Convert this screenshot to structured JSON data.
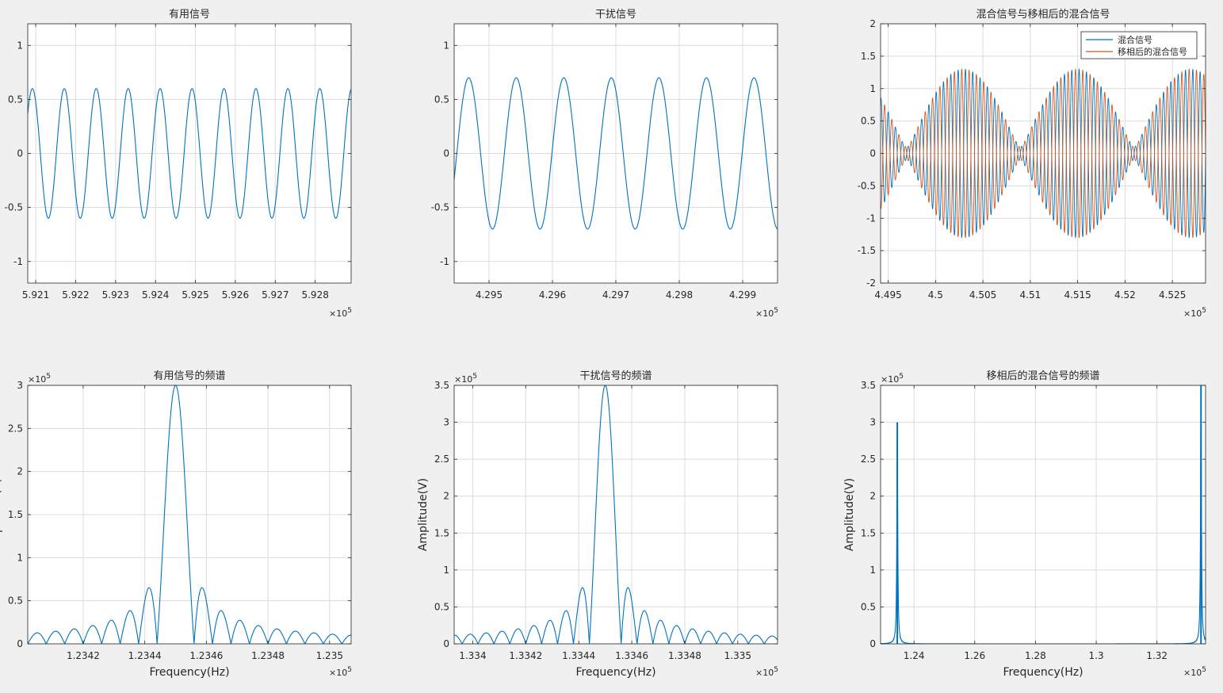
{
  "window": {
    "background": "#f0f0f0"
  },
  "colors": {
    "series1": "#0072bd",
    "series2": "#d95319",
    "grid": "#dcdcdc",
    "axis": "#262626",
    "plot_bg": "#ffffff"
  },
  "chart_data": [
    {
      "type": "line",
      "title": "有用信号",
      "xlabel": "",
      "ylabel": "",
      "xlim": [
        592080,
        592890
      ],
      "ylim": [
        -1.2,
        1.2
      ],
      "x_ticks": [
        592100,
        592200,
        592300,
        592400,
        592500,
        592600,
        592700,
        592800
      ],
      "x_tick_labels": [
        "5.921",
        "5.922",
        "5.923",
        "5.924",
        "5.925",
        "5.926",
        "5.927",
        "5.928"
      ],
      "x_exponent": "5",
      "y_ticks": [
        -1,
        -0.5,
        0,
        0.5,
        1
      ],
      "y_tick_labels": [
        "-1",
        "-0.5",
        "0",
        "0.5",
        "1"
      ],
      "grid": true,
      "series": [
        {
          "kind": "sine",
          "amplitude": 0.6,
          "period": 80,
          "phase": 0.66
        }
      ]
    },
    {
      "type": "line",
      "title": "干扰信号",
      "xlabel": "",
      "ylabel": "",
      "xlim": [
        429445,
        429955
      ],
      "ylim": [
        -1.2,
        1.2
      ],
      "x_ticks": [
        429500,
        429600,
        429700,
        429800,
        429900
      ],
      "x_tick_labels": [
        "4.295",
        "4.296",
        "4.297",
        "4.298",
        "4.299"
      ],
      "x_exponent": "5",
      "y_ticks": [
        -1,
        -0.5,
        0,
        0.5,
        1
      ],
      "y_tick_labels": [
        "-1",
        "-0.5",
        "0",
        "0.5",
        "1"
      ],
      "grid": true,
      "series": [
        {
          "kind": "sine",
          "amplitude": 0.7,
          "period": 75,
          "phase": -0.35
        }
      ]
    },
    {
      "type": "line",
      "title": "混合信号与移相后的混合信号",
      "xlabel": "",
      "ylabel": "",
      "xlim": [
        449420,
        452850
      ],
      "ylim": [
        -2,
        2
      ],
      "x_ticks": [
        449500,
        450000,
        450500,
        451000,
        451500,
        452000,
        452500
      ],
      "x_tick_labels": [
        "4.495",
        "4.5",
        "4.505",
        "4.51",
        "4.515",
        "4.52",
        "4.525"
      ],
      "x_exponent": "5",
      "y_ticks": [
        -2,
        -1.5,
        -1,
        -0.5,
        0,
        0.5,
        1,
        1.5,
        2
      ],
      "y_tick_labels": [
        "-2",
        "-1.5",
        "-1",
        "-0.5",
        "0",
        "0.5",
        "1",
        "1.5",
        "2"
      ],
      "grid": true,
      "legend": {
        "position": "top-right",
        "entries": [
          "混合信号",
          "移相后的混合信号"
        ]
      },
      "series": [
        {
          "name": "混合信号",
          "kind": "beat",
          "a1": 0.6,
          "a2": 0.7,
          "period1": 80,
          "period2": 75,
          "phase": 0
        },
        {
          "name": "移相后的混合信号",
          "kind": "beat",
          "a1": 0.6,
          "a2": 0.7,
          "period1": 80,
          "period2": 75,
          "phase": 3.14159
        }
      ]
    },
    {
      "type": "line",
      "title": "有用信号的频谱",
      "xlabel": "Frequency(Hz)",
      "ylabel": "Amplitude(V)",
      "xlim": [
        123402,
        123507
      ],
      "ylim": [
        0,
        300000
      ],
      "x_ticks": [
        123420,
        123440,
        123460,
        123480,
        123500
      ],
      "x_tick_labels": [
        "1.2342",
        "1.2344",
        "1.2346",
        "1.2348",
        "1.235"
      ],
      "x_exponent": "5",
      "y_ticks": [
        0,
        50000,
        100000,
        150000,
        200000,
        250000,
        300000
      ],
      "y_tick_labels": [
        "0",
        "0.5",
        "1",
        "1.5",
        "2",
        "2.5",
        "3"
      ],
      "y_exponent": "5",
      "grid": true,
      "series": [
        {
          "kind": "sinc",
          "center": 123450,
          "peak": 300000,
          "null_spacing": 6
        }
      ]
    },
    {
      "type": "line",
      "title": "干扰信号的频谱",
      "xlabel": "Frequency(Hz)",
      "ylabel": "Amplitude(V)",
      "xlim": [
        133393,
        133515
      ],
      "ylim": [
        0,
        350000
      ],
      "x_ticks": [
        133400,
        133420,
        133440,
        133460,
        133480,
        133500
      ],
      "x_tick_labels": [
        "1.334",
        "1.3342",
        "1.3344",
        "1.3346",
        "1.3348",
        "1.335"
      ],
      "x_exponent": "5",
      "y_ticks": [
        0,
        50000,
        100000,
        150000,
        200000,
        250000,
        300000,
        350000
      ],
      "y_tick_labels": [
        "0",
        "0.5",
        "1",
        "1.5",
        "2",
        "2.5",
        "3",
        "3.5"
      ],
      "y_exponent": "5",
      "grid": true,
      "series": [
        {
          "kind": "sinc",
          "center": 133450,
          "peak": 350000,
          "null_spacing": 6
        }
      ]
    },
    {
      "type": "line",
      "title": "移相后的混合信号的频谱",
      "xlabel": "Frequency(Hz)",
      "ylabel": "Amplitude(V)",
      "xlim": [
        122900,
        133600
      ],
      "ylim": [
        0,
        350000
      ],
      "x_ticks": [
        124000,
        126000,
        128000,
        130000,
        132000
      ],
      "x_tick_labels": [
        "1.24",
        "1.26",
        "1.28",
        "1.3",
        "1.32"
      ],
      "x_exponent": "5",
      "y_ticks": [
        0,
        50000,
        100000,
        150000,
        200000,
        250000,
        300000,
        350000
      ],
      "y_tick_labels": [
        "0",
        "0.5",
        "1",
        "1.5",
        "2",
        "2.5",
        "3",
        "3.5"
      ],
      "y_exponent": "5",
      "grid": true,
      "series": [
        {
          "kind": "peaks",
          "peaks": [
            {
              "x": 123450,
              "y": 300000
            },
            {
              "x": 133450,
              "y": 350000
            }
          ]
        }
      ]
    }
  ]
}
